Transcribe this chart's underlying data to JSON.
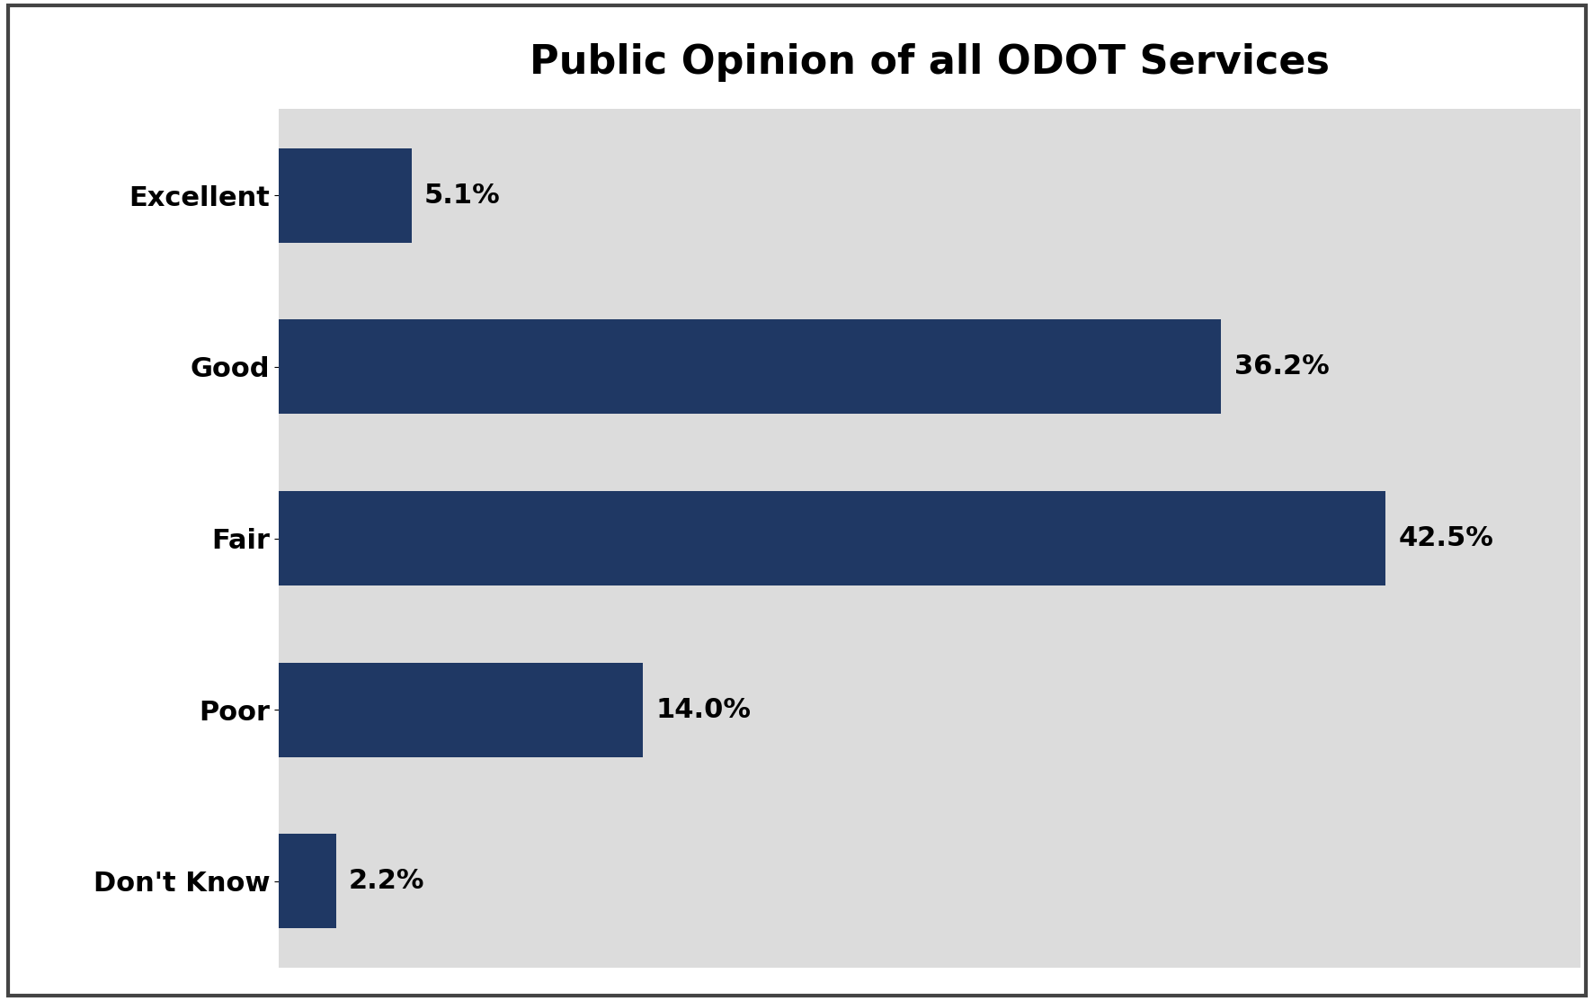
{
  "title": "Public Opinion of all ODOT Services",
  "categories": [
    "Excellent",
    "Good",
    "Fair",
    "Poor",
    "Don't Know"
  ],
  "values": [
    5.1,
    36.2,
    42.5,
    14.0,
    2.2
  ],
  "labels": [
    "5.1%",
    "36.2%",
    "42.5%",
    "14.0%",
    "2.2%"
  ],
  "bar_color": "#1F3864",
  "background_color": "#DCDCDC",
  "outer_background": "#FFFFFF",
  "title_fontsize": 32,
  "label_fontsize": 22,
  "category_fontsize": 22,
  "xlim": [
    0,
    50
  ],
  "bar_height": 0.55
}
